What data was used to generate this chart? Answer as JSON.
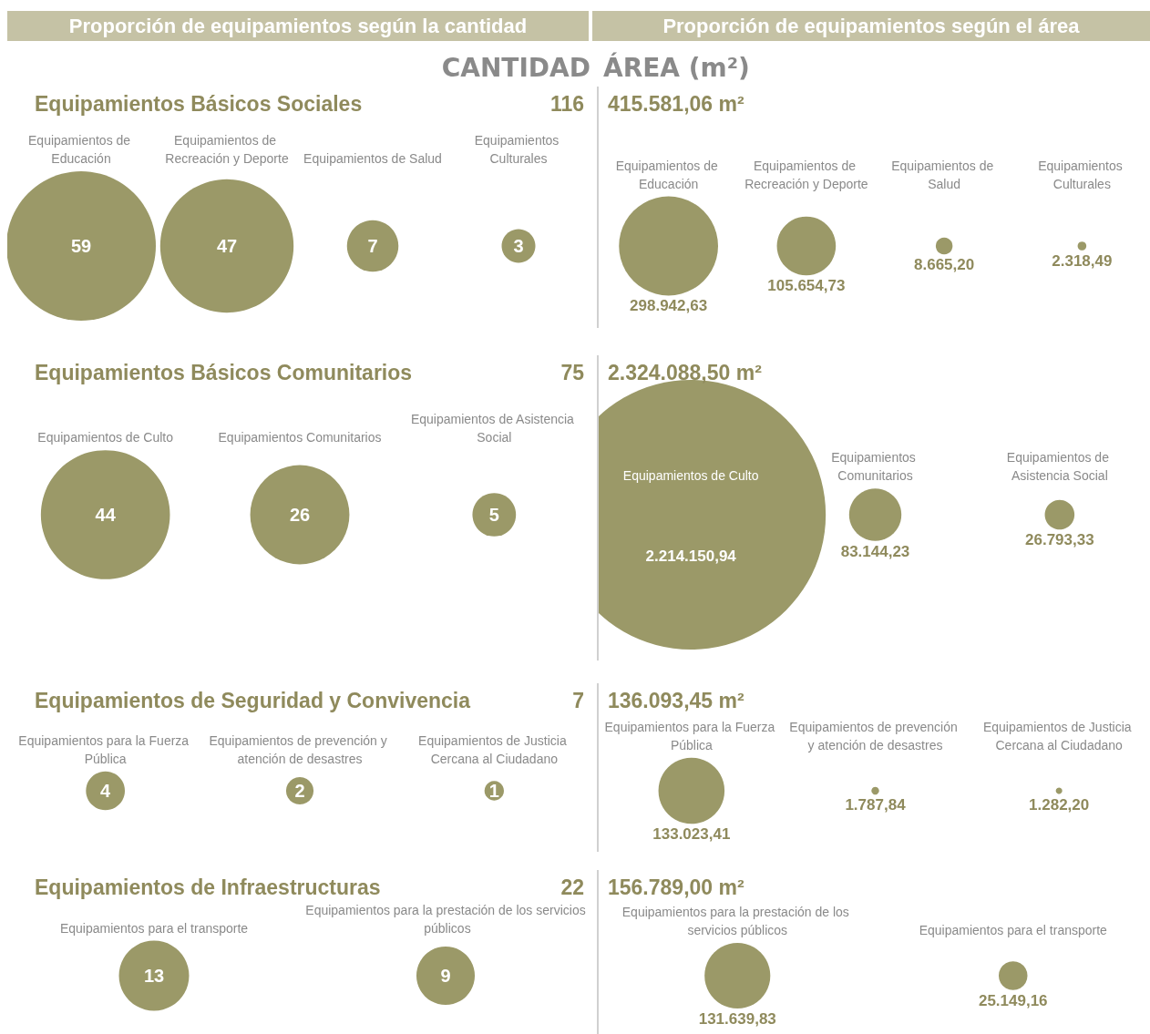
{
  "chart_data": [
    {
      "type": "other",
      "title": "Equipamientos Básicos Sociales",
      "subtitle": "116",
      "annotations": [
        "Proporción de equipamientos según la cantidad",
        "CANTIDAD"
      ],
      "categories": [
        "Equipamientos de Educación",
        "Equipamientos de Recreación y Deporte",
        "Equipamientos de Salud",
        "Equipamientos Culturales"
      ],
      "values": [
        59,
        47,
        7,
        3
      ],
      "data_labels": true,
      "color": "#9b9968"
    },
    {
      "type": "other",
      "title": "415.581,06 m²",
      "annotations": [
        "Proporción de equipamientos según el área",
        "ÁREA (m²)"
      ],
      "categories": [
        "Equipamientos de Educación",
        "Equipamientos de Recreación y Deporte",
        "Equipamientos de Salud",
        "Equipamientos Culturales"
      ],
      "values": [
        298942.63,
        105654.73,
        8665.2,
        2318.49
      ],
      "value_labels": [
        "298.942,63",
        "105.654,73",
        "8.665,20",
        "2.318,49"
      ],
      "color": "#9b9968"
    },
    {
      "type": "other",
      "title": "Equipamientos Básicos Comunitarios",
      "subtitle": "75",
      "categories": [
        "Equipamientos de Culto",
        "Equipamientos Comunitarios",
        "Equipamientos de Asistencia Social"
      ],
      "values": [
        44,
        26,
        5
      ],
      "data_labels": true,
      "color": "#9b9968"
    },
    {
      "type": "other",
      "title": "2.324.088,50 m²",
      "categories": [
        "Equipamientos de Culto",
        "Equipamientos Comunitarios",
        "Equipamientos de Asistencia Social"
      ],
      "values": [
        2214150.94,
        83144.23,
        26793.33
      ],
      "value_labels": [
        "2.214.150,94",
        "83.144,23",
        "26.793,33"
      ],
      "color": "#9b9968"
    },
    {
      "type": "other",
      "title": "Equipamientos de Seguridad y Convivencia",
      "subtitle": "7",
      "categories": [
        "Equipamientos para la Fuerza Pública",
        "Equipamientos de prevención y atención de desastres",
        "Equipamientos de Justicia Cercana al Ciudadano"
      ],
      "values": [
        4,
        2,
        1
      ],
      "data_labels": true,
      "color": "#9b9968"
    },
    {
      "type": "other",
      "title": "136.093,45 m²",
      "categories": [
        "Equipamientos para la Fuerza Pública",
        "Equipamientos de prevención y atención de desastres",
        "Equipamientos de Justicia Cercana al Ciudadano"
      ],
      "values": [
        133023.41,
        1787.84,
        1282.2
      ],
      "value_labels": [
        "133.023,41",
        "1.787,84",
        "1.282,20"
      ],
      "color": "#9b9968"
    },
    {
      "type": "other",
      "title": "Equipamientos de Infraestructuras",
      "subtitle": "22",
      "categories": [
        "Equipamientos para el transporte",
        "Equipamientos para la prestación de los servicios públicos"
      ],
      "values": [
        13,
        9
      ],
      "data_labels": true,
      "color": "#9b9968"
    },
    {
      "type": "other",
      "title": "156.789,00 m²",
      "categories": [
        "Equipamientos para la prestación de los servicios públicos",
        "Equipamientos para el transporte"
      ],
      "values": [
        131639.83,
        25149.16
      ],
      "value_labels": [
        "131.639,83",
        "25.149,16"
      ],
      "color": "#9b9968"
    }
  ]
}
